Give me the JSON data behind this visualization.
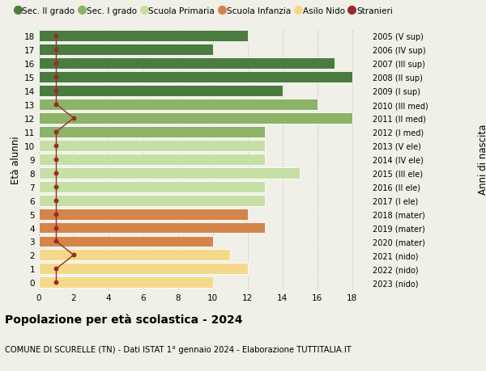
{
  "ages": [
    18,
    17,
    16,
    15,
    14,
    13,
    12,
    11,
    10,
    9,
    8,
    7,
    6,
    5,
    4,
    3,
    2,
    1,
    0
  ],
  "years": [
    "2005 (V sup)",
    "2006 (IV sup)",
    "2007 (III sup)",
    "2008 (II sup)",
    "2009 (I sup)",
    "2010 (III med)",
    "2011 (II med)",
    "2012 (I med)",
    "2013 (V ele)",
    "2014 (IV ele)",
    "2015 (III ele)",
    "2016 (II ele)",
    "2017 (I ele)",
    "2018 (mater)",
    "2019 (mater)",
    "2020 (mater)",
    "2021 (nido)",
    "2022 (nido)",
    "2023 (nido)"
  ],
  "values": [
    12,
    10,
    17,
    18,
    14,
    16,
    18,
    13,
    13,
    13,
    15,
    13,
    13,
    12,
    13,
    10,
    11,
    12,
    10
  ],
  "stranieri": [
    1,
    1,
    1,
    1,
    1,
    1,
    2,
    1,
    1,
    1,
    1,
    1,
    1,
    1,
    1,
    1,
    2,
    1,
    1
  ],
  "bar_colors": [
    "#4a7c3f",
    "#4a7c3f",
    "#4a7c3f",
    "#4a7c3f",
    "#4a7c3f",
    "#8db368",
    "#8db368",
    "#8db368",
    "#c5dfa5",
    "#c5dfa5",
    "#c5dfa5",
    "#c5dfa5",
    "#c5dfa5",
    "#d4854a",
    "#d4854a",
    "#d4854a",
    "#f5d98b",
    "#f5d98b",
    "#f5d98b"
  ],
  "stranieri_color": "#9b2a2a",
  "background_color": "#f0f0e8",
  "grid_color": "#cccccc",
  "title": "Popolazione per età scolastica - 2024",
  "subtitle": "COMUNE DI SCURELLE (TN) - Dati ISTAT 1° gennaio 2024 - Elaborazione TUTTITALIA.IT",
  "ylabel_left": "Età alunni",
  "ylabel_right": "Anni di nascita",
  "xlim": [
    0,
    19
  ],
  "ylim": [
    -0.5,
    18.5
  ],
  "xticks": [
    0,
    2,
    4,
    6,
    8,
    10,
    12,
    14,
    16,
    18
  ],
  "legend_labels": [
    "Sec. II grado",
    "Sec. I grado",
    "Scuola Primaria",
    "Scuola Infanzia",
    "Asilo Nido",
    "Stranieri"
  ],
  "legend_colors": [
    "#4a7c3f",
    "#8db368",
    "#c5dfa5",
    "#d4854a",
    "#f5d98b",
    "#9b2a2a"
  ]
}
